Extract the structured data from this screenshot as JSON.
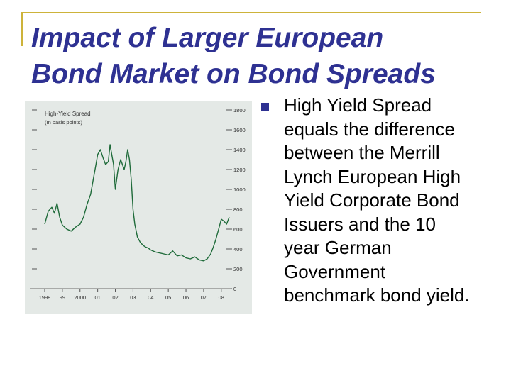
{
  "slide": {
    "title_lines": [
      "Impact of Larger European",
      "Bond Market on Bond Spreads"
    ],
    "bullet": {
      "lines": [
        "High Yield Spread",
        "equals the difference",
        "between the Merrill",
        "Lynch European High",
        "Yield Corporate Bond",
        "Issuers and the 10",
        "year German",
        "Government",
        "benchmark bond yield."
      ]
    }
  },
  "chart_data": {
    "type": "line",
    "title": "High-Yield Spread",
    "subtitle": "(In basis points)",
    "x_tick_labels": [
      "1998",
      "99",
      "2000",
      "01",
      "02",
      "03",
      "04",
      "05",
      "06",
      "07",
      "08"
    ],
    "y_tick_labels": [
      "0",
      "200",
      "400",
      "600",
      "800",
      "1000",
      "1200",
      "1400",
      "1600",
      "1800"
    ],
    "ylim": [
      0,
      1800
    ],
    "xlim": [
      1998.0,
      2008.45
    ],
    "grid": false,
    "series": [
      {
        "x": [
          1998.0,
          1998.2,
          1998.4,
          1998.55,
          1998.7,
          1998.85,
          1999.0,
          1999.25,
          1999.5,
          1999.75,
          2000.0,
          2000.2,
          2000.4,
          2000.6,
          2000.75,
          2000.9,
          2001.0,
          2001.15,
          2001.3,
          2001.45,
          2001.6,
          2001.7,
          2001.8,
          2001.9,
          2002.0,
          2002.15,
          2002.3,
          2002.4,
          2002.5,
          2002.6,
          2002.7,
          2002.8,
          2002.9,
          2003.0,
          2003.1,
          2003.25,
          2003.4,
          2003.55,
          2003.7,
          2003.85,
          2004.0,
          2004.25,
          2004.5,
          2004.75,
          2005.0,
          2005.25,
          2005.5,
          2005.75,
          2006.0,
          2006.25,
          2006.5,
          2006.75,
          2007.0,
          2007.2,
          2007.4,
          2007.55,
          2007.7,
          2007.85,
          2008.0,
          2008.15,
          2008.3,
          2008.45
        ],
        "y": [
          650,
          780,
          820,
          760,
          860,
          720,
          640,
          600,
          580,
          620,
          650,
          720,
          850,
          950,
          1100,
          1250,
          1350,
          1400,
          1320,
          1250,
          1280,
          1450,
          1350,
          1250,
          1000,
          1200,
          1300,
          1250,
          1200,
          1280,
          1400,
          1300,
          1100,
          800,
          650,
          520,
          470,
          440,
          420,
          410,
          390,
          370,
          360,
          350,
          340,
          380,
          330,
          340,
          310,
          300,
          320,
          290,
          280,
          300,
          350,
          420,
          500,
          600,
          700,
          680,
          650,
          720
        ]
      }
    ]
  }
}
